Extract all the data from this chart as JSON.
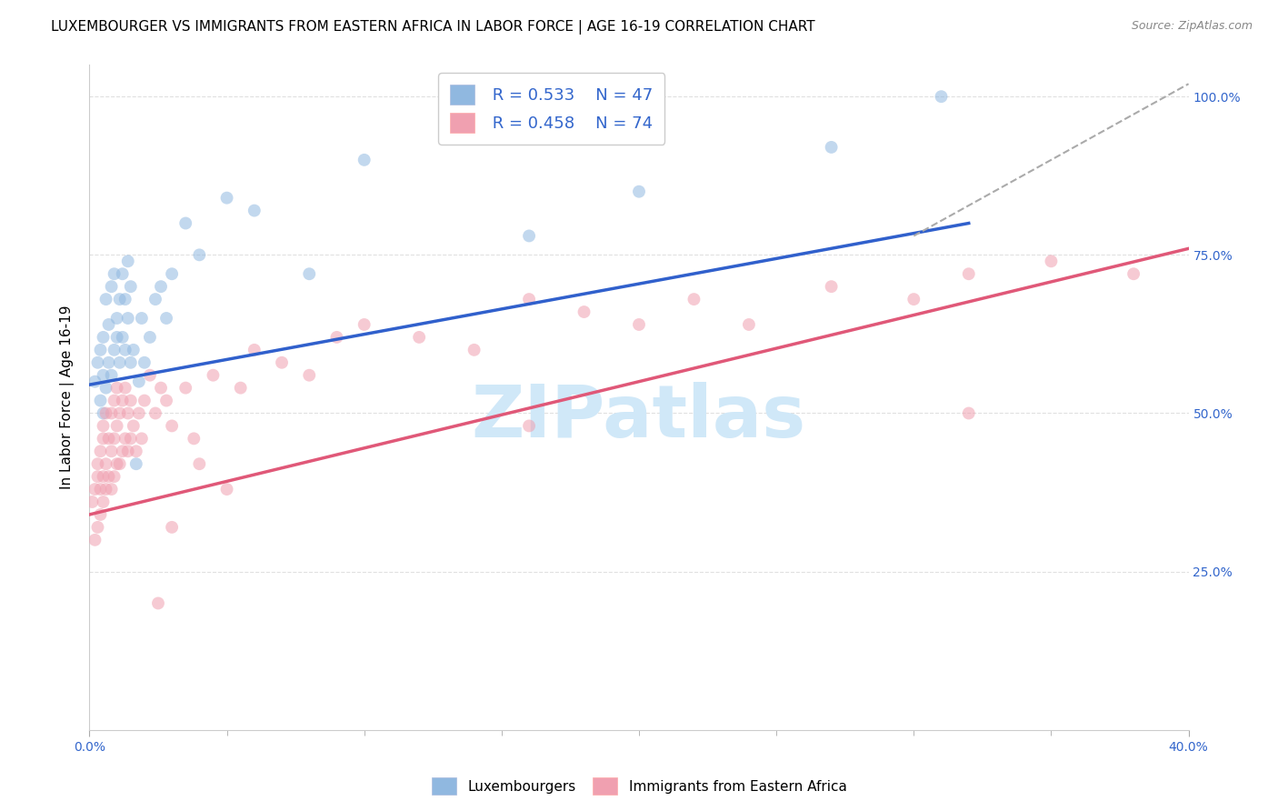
{
  "title": "LUXEMBOURGER VS IMMIGRANTS FROM EASTERN AFRICA IN LABOR FORCE | AGE 16-19 CORRELATION CHART",
  "source": "Source: ZipAtlas.com",
  "ylabel": "In Labor Force | Age 16-19",
  "xlim": [
    0.0,
    0.4
  ],
  "ylim": [
    0.0,
    1.05
  ],
  "ytick_right_vals": [
    0.25,
    0.5,
    0.75,
    1.0
  ],
  "ytick_right_labels": [
    "25.0%",
    "50.0%",
    "75.0%",
    "100.0%"
  ],
  "blue_color": "#90B8E0",
  "pink_color": "#F0A0B0",
  "blue_line_color": "#3060CC",
  "pink_line_color": "#E05878",
  "dashed_line_color": "#AAAAAA",
  "axis_color": "#3366CC",
  "watermark_text": "ZIPatlas",
  "legend_R_blue": "R = 0.533",
  "legend_N_blue": "N = 47",
  "legend_R_pink": "R = 0.458",
  "legend_N_pink": "N = 74",
  "blue_scatter_x": [
    0.002,
    0.003,
    0.004,
    0.004,
    0.005,
    0.005,
    0.005,
    0.006,
    0.006,
    0.007,
    0.007,
    0.008,
    0.008,
    0.009,
    0.009,
    0.01,
    0.01,
    0.011,
    0.011,
    0.012,
    0.012,
    0.013,
    0.013,
    0.014,
    0.014,
    0.015,
    0.015,
    0.016,
    0.017,
    0.018,
    0.019,
    0.02,
    0.022,
    0.024,
    0.026,
    0.028,
    0.03,
    0.035,
    0.04,
    0.05,
    0.06,
    0.08,
    0.1,
    0.16,
    0.2,
    0.27,
    0.31
  ],
  "blue_scatter_y": [
    0.55,
    0.58,
    0.52,
    0.6,
    0.5,
    0.56,
    0.62,
    0.54,
    0.68,
    0.58,
    0.64,
    0.56,
    0.7,
    0.6,
    0.72,
    0.62,
    0.65,
    0.58,
    0.68,
    0.62,
    0.72,
    0.6,
    0.68,
    0.65,
    0.74,
    0.58,
    0.7,
    0.6,
    0.42,
    0.55,
    0.65,
    0.58,
    0.62,
    0.68,
    0.7,
    0.65,
    0.72,
    0.8,
    0.75,
    0.84,
    0.82,
    0.72,
    0.9,
    0.78,
    0.85,
    0.92,
    1.0
  ],
  "pink_scatter_x": [
    0.001,
    0.002,
    0.002,
    0.003,
    0.003,
    0.003,
    0.004,
    0.004,
    0.004,
    0.005,
    0.005,
    0.005,
    0.005,
    0.006,
    0.006,
    0.006,
    0.007,
    0.007,
    0.008,
    0.008,
    0.008,
    0.009,
    0.009,
    0.009,
    0.01,
    0.01,
    0.01,
    0.011,
    0.011,
    0.012,
    0.012,
    0.013,
    0.013,
    0.014,
    0.014,
    0.015,
    0.015,
    0.016,
    0.017,
    0.018,
    0.019,
    0.02,
    0.022,
    0.024,
    0.026,
    0.028,
    0.03,
    0.035,
    0.038,
    0.04,
    0.045,
    0.05,
    0.055,
    0.06,
    0.07,
    0.08,
    0.09,
    0.1,
    0.12,
    0.14,
    0.16,
    0.18,
    0.2,
    0.22,
    0.24,
    0.27,
    0.3,
    0.32,
    0.35,
    0.38,
    0.025,
    0.03,
    0.16,
    0.32
  ],
  "pink_scatter_y": [
    0.36,
    0.3,
    0.38,
    0.32,
    0.4,
    0.42,
    0.34,
    0.38,
    0.44,
    0.36,
    0.4,
    0.46,
    0.48,
    0.38,
    0.42,
    0.5,
    0.4,
    0.46,
    0.38,
    0.44,
    0.5,
    0.4,
    0.46,
    0.52,
    0.42,
    0.48,
    0.54,
    0.42,
    0.5,
    0.44,
    0.52,
    0.46,
    0.54,
    0.44,
    0.5,
    0.46,
    0.52,
    0.48,
    0.44,
    0.5,
    0.46,
    0.52,
    0.56,
    0.5,
    0.54,
    0.52,
    0.48,
    0.54,
    0.46,
    0.42,
    0.56,
    0.38,
    0.54,
    0.6,
    0.58,
    0.56,
    0.62,
    0.64,
    0.62,
    0.6,
    0.68,
    0.66,
    0.64,
    0.68,
    0.64,
    0.7,
    0.68,
    0.72,
    0.74,
    0.72,
    0.2,
    0.32,
    0.48,
    0.5
  ],
  "blue_trend_x": [
    0.0,
    0.32
  ],
  "blue_trend_y": [
    0.545,
    0.8
  ],
  "pink_trend_x": [
    0.0,
    0.4
  ],
  "pink_trend_y": [
    0.34,
    0.76
  ],
  "dashed_trend_x": [
    0.3,
    0.4
  ],
  "dashed_trend_y": [
    0.78,
    1.02
  ],
  "background_color": "#FFFFFF",
  "grid_color": "#DDDDDD",
  "title_fontsize": 11,
  "axis_label_fontsize": 11,
  "tick_fontsize": 10,
  "scatter_size": 100,
  "scatter_alpha": 0.55
}
